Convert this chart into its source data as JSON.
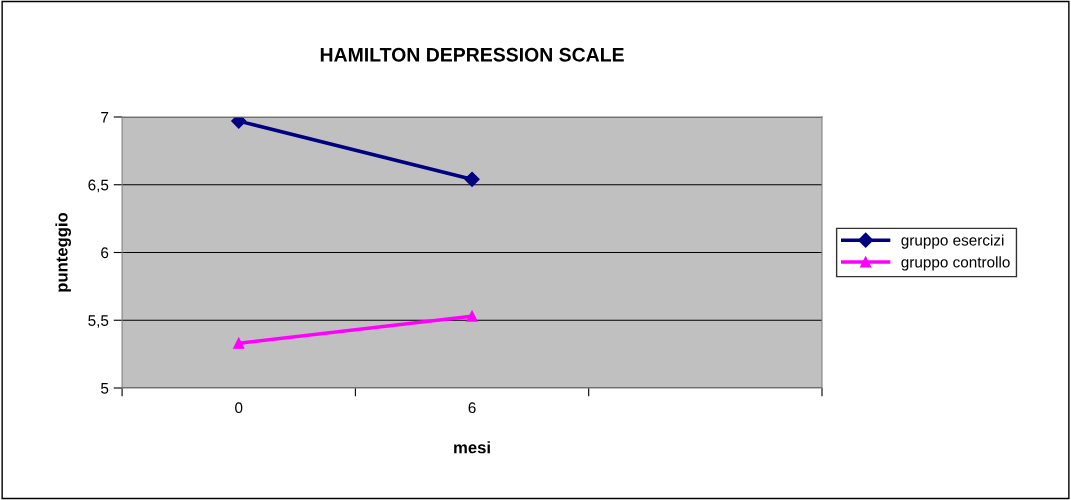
{
  "chart_data": {
    "type": "line",
    "title": "HAMILTON DEPRESSION SCALE",
    "xlabel": "mesi",
    "ylabel": "punteggio",
    "categories": [
      "0",
      "6",
      null
    ],
    "series": [
      {
        "name": "gruppo esercizi",
        "color": "#000080",
        "marker": "diamond",
        "values": [
          6.97,
          6.54,
          null
        ]
      },
      {
        "name": "gruppo controllo",
        "color": "#ff00ff",
        "marker": "triangle",
        "values": [
          5.33,
          5.53,
          null
        ]
      }
    ],
    "ylim": [
      5,
      7
    ],
    "yticks": [
      5,
      {
        "value": 5.5,
        "label": "5,5"
      },
      6,
      {
        "value": 6.5,
        "label": "6,5"
      },
      7
    ],
    "grid": "y",
    "legend": "right"
  }
}
